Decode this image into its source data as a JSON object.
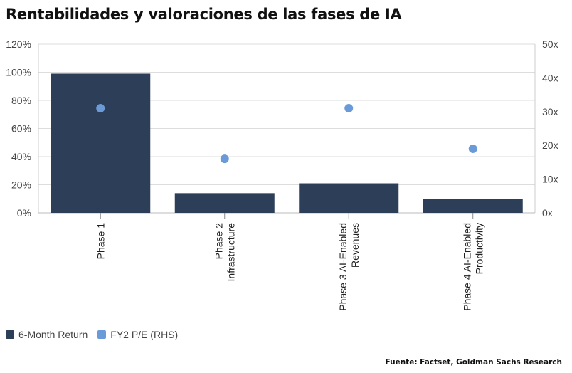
{
  "title": "Rentabilidades y valoraciones de las fases de IA",
  "source": "Fuente: Factset, Goldman Sachs Research",
  "chart_data": {
    "type": "bar",
    "categories": [
      [
        "Phase 1"
      ],
      [
        "Phase 2",
        "Infrastructure"
      ],
      [
        "Phase 3 AI-Enabled",
        "Revenues"
      ],
      [
        "Phase 4 AI-Enabled",
        "Productivity"
      ]
    ],
    "series": [
      {
        "name": "6-Month Return",
        "type": "bar",
        "axis": "left",
        "values": [
          99,
          14,
          21,
          10
        ],
        "color": "#2c3e58"
      },
      {
        "name": "FY2 P/E (RHS)",
        "type": "scatter",
        "axis": "right",
        "values": [
          31,
          16,
          31,
          19
        ],
        "color": "#6a9bd8"
      }
    ],
    "y_left": {
      "min": 0,
      "max": 120,
      "step": 20,
      "ticks": [
        "0%",
        "20%",
        "40%",
        "60%",
        "80%",
        "100%",
        "120%"
      ]
    },
    "y_right": {
      "min": 0,
      "max": 50,
      "step": 10,
      "ticks": [
        "0x",
        "10x",
        "20x",
        "30x",
        "40x",
        "50x"
      ]
    },
    "grid": true,
    "legend": "bottom-left"
  }
}
